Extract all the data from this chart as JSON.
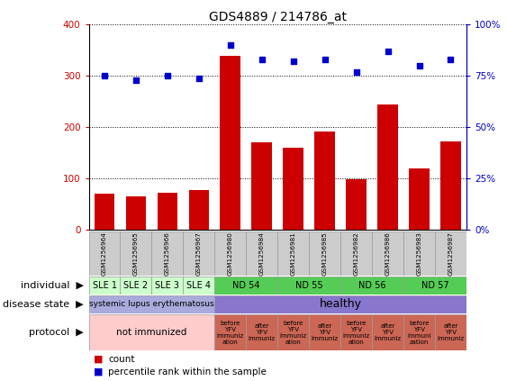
{
  "title": "GDS4889 / 214786_at",
  "samples": [
    "GSM1256964",
    "GSM1256965",
    "GSM1256966",
    "GSM1256967",
    "GSM1256980",
    "GSM1256984",
    "GSM1256981",
    "GSM1256985",
    "GSM1256982",
    "GSM1256986",
    "GSM1256983",
    "GSM1256987"
  ],
  "counts": [
    70,
    65,
    72,
    78,
    340,
    170,
    160,
    192,
    98,
    245,
    120,
    172
  ],
  "percentiles": [
    75,
    73,
    75,
    74,
    90,
    83,
    82,
    83,
    77,
    87,
    80,
    83
  ],
  "bar_color": "#cc0000",
  "dot_color": "#0000cc",
  "ylim_left": [
    0,
    400
  ],
  "ylim_right": [
    0,
    100
  ],
  "yticks_left": [
    0,
    100,
    200,
    300,
    400
  ],
  "yticks_right": [
    0,
    25,
    50,
    75,
    100
  ],
  "yticklabels_right": [
    "0%",
    "25%",
    "50%",
    "75%",
    "100%"
  ],
  "individual_groups": [
    {
      "label": "SLE 1",
      "start": 0,
      "end": 1,
      "color": "#ccffcc"
    },
    {
      "label": "SLE 2",
      "start": 1,
      "end": 2,
      "color": "#ccffcc"
    },
    {
      "label": "SLE 3",
      "start": 2,
      "end": 3,
      "color": "#ccffcc"
    },
    {
      "label": "SLE 4",
      "start": 3,
      "end": 4,
      "color": "#ccffcc"
    },
    {
      "label": "ND 54",
      "start": 4,
      "end": 6,
      "color": "#55cc55"
    },
    {
      "label": "ND 55",
      "start": 6,
      "end": 8,
      "color": "#55cc55"
    },
    {
      "label": "ND 56",
      "start": 8,
      "end": 10,
      "color": "#55cc55"
    },
    {
      "label": "ND 57",
      "start": 10,
      "end": 12,
      "color": "#55cc55"
    }
  ],
  "disease_groups": [
    {
      "label": "systemic lupus erythematosus",
      "start": 0,
      "end": 4,
      "color": "#aaaadd"
    },
    {
      "label": "healthy",
      "start": 4,
      "end": 12,
      "color": "#8877cc"
    }
  ],
  "protocol_groups": [
    {
      "label": "not immunized",
      "start": 0,
      "end": 4,
      "color": "#ffcccc"
    },
    {
      "label": "before\nYFV\nimmuniz\nation",
      "start": 4,
      "end": 5,
      "color": "#cc6655"
    },
    {
      "label": "after\nYFV\nimmuniz",
      "start": 5,
      "end": 6,
      "color": "#cc6655"
    },
    {
      "label": "before\nYFV\nimmuniz\nation",
      "start": 6,
      "end": 7,
      "color": "#cc6655"
    },
    {
      "label": "after\nYFV\nimmuniz",
      "start": 7,
      "end": 8,
      "color": "#cc6655"
    },
    {
      "label": "before\nYFV\nimmuniz\nation",
      "start": 8,
      "end": 9,
      "color": "#cc6655"
    },
    {
      "label": "after\nYFV\nimmuniz",
      "start": 9,
      "end": 10,
      "color": "#cc6655"
    },
    {
      "label": "before\nYFV\nimmuni\nzation",
      "start": 10,
      "end": 11,
      "color": "#cc6655"
    },
    {
      "label": "after\nYFV\nimmuniz",
      "start": 11,
      "end": 12,
      "color": "#cc6655"
    }
  ],
  "row_labels": [
    "individual",
    "disease state",
    "protocol"
  ],
  "legend_count_color": "#cc0000",
  "legend_dot_color": "#0000cc",
  "background_color": "#ffffff",
  "tick_label_color_left": "#cc0000",
  "tick_label_color_right": "#0000cc",
  "sle_color": "#ccffcc",
  "nd_color": "#55cc55",
  "sample_box_color": "#cccccc"
}
